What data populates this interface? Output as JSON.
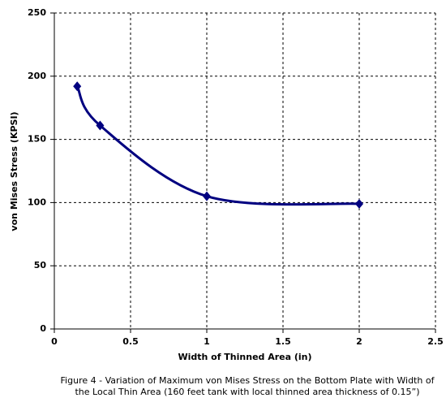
{
  "chart_data": {
    "type": "line",
    "x_label": "Width of Thinned Area (in)",
    "y_label": "von Mises Stress (KPSI)",
    "caption": [
      "Figure 4 - Variation of Maximum von Mises Stress on the Bottom Plate with Width of",
      "the Local Thin Area (160 feet tank with local thinned area thickness of 0.15”)"
    ],
    "x": [
      0.15,
      0.3,
      1,
      2
    ],
    "series": [
      {
        "color": "#000080",
        "values": [
          192,
          161,
          105,
          99
        ]
      }
    ],
    "xlim": [
      0,
      2.5
    ],
    "xticks": [
      0,
      0.5,
      1,
      1.5,
      2,
      2.5
    ],
    "ylim": [
      0,
      250
    ],
    "yticks": [
      0,
      50,
      100,
      150,
      200,
      250
    ],
    "grid": true
  }
}
